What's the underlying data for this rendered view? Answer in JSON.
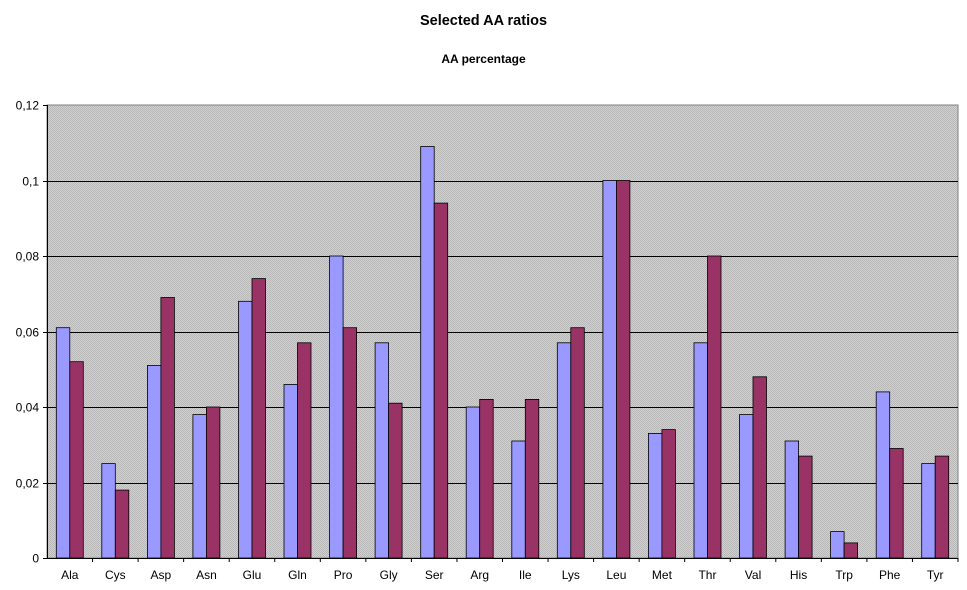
{
  "chart_data": {
    "type": "bar",
    "title": "Selected AA ratios",
    "subtitle": "AA percentage",
    "xlabel": "",
    "ylabel": "",
    "ylim": [
      0,
      0.12
    ],
    "ytick_labels": [
      "0",
      "0,02",
      "0,04",
      "0,06",
      "0,08",
      "0,1",
      "0,12"
    ],
    "grid": true,
    "legend": "none",
    "categories": [
      "Ala",
      "Cys",
      "Asp",
      "Asn",
      "Glu",
      "Gln",
      "Pro",
      "Gly",
      "Ser",
      "Arg",
      "Ile",
      "Lys",
      "Leu",
      "Met",
      "Thr",
      "Val",
      "His",
      "Trp",
      "Phe",
      "Tyr"
    ],
    "series": [
      {
        "color": "#9999ff",
        "values": [
          0.061,
          0.025,
          0.051,
          0.038,
          0.068,
          0.046,
          0.08,
          0.057,
          0.109,
          0.04,
          0.031,
          0.057,
          0.1,
          0.033,
          0.057,
          0.038,
          0.031,
          0.007,
          0.044,
          0.025
        ]
      },
      {
        "color": "#993366",
        "values": [
          0.052,
          0.018,
          0.069,
          0.04,
          0.074,
          0.057,
          0.061,
          0.041,
          0.094,
          0.042,
          0.042,
          0.061,
          0.1,
          0.034,
          0.08,
          0.048,
          0.027,
          0.004,
          0.029,
          0.027
        ]
      }
    ],
    "plot_background": "#c0c0c0"
  }
}
